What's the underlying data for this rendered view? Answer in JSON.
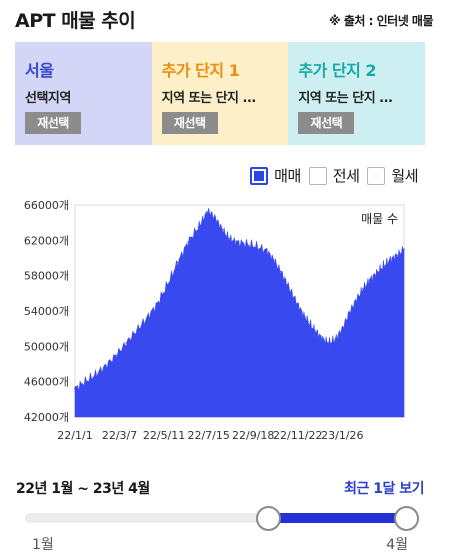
{
  "header": {
    "title": "APT 매물 추이",
    "source": "※ 출처 : 인터넷 매물"
  },
  "cards": [
    {
      "title": "서울",
      "subtitle": "선택지역",
      "button": "재선택",
      "color": "#3948d0"
    },
    {
      "title": "추가 단지 1",
      "subtitle": "지역 또는 단지 ...",
      "button": "재선택",
      "color": "#eb8d11"
    },
    {
      "title": "추가 단지 2",
      "subtitle": "지역 또는 단지 ...",
      "button": "재선택",
      "color": "#16a9a6"
    }
  ],
  "legend": [
    {
      "label": "매매",
      "checked": true
    },
    {
      "label": "전세",
      "checked": false
    },
    {
      "label": "월세",
      "checked": false
    }
  ],
  "chart_data": {
    "type": "area",
    "series_label": "매물 수",
    "color": "#3949f0",
    "ylim": [
      42000,
      66000
    ],
    "y_ticks": [
      "66000개",
      "62000개",
      "58000개",
      "54000개",
      "50000개",
      "46000개",
      "42000개"
    ],
    "y_tick_values": [
      66000,
      62000,
      58000,
      54000,
      50000,
      46000,
      42000
    ],
    "x_ticks": [
      "22/1/1",
      "22/3/7",
      "22/5/11",
      "22/7/15",
      "22/9/18",
      "22/11/22",
      "23/1/26"
    ],
    "x_tick_days": [
      0,
      65,
      130,
      195,
      260,
      325,
      390
    ],
    "x": [
      0,
      15,
      30,
      45,
      60,
      75,
      90,
      105,
      120,
      135,
      150,
      165,
      180,
      190,
      195,
      205,
      215,
      225,
      235,
      250,
      265,
      280,
      290,
      300,
      310,
      320,
      330,
      340,
      350,
      360,
      370,
      380,
      390,
      400,
      410,
      420,
      430,
      440,
      450,
      460,
      470,
      480
    ],
    "values": [
      45200,
      46000,
      46800,
      47800,
      49000,
      50400,
      51800,
      53200,
      54800,
      57000,
      59500,
      61800,
      63500,
      64800,
      65300,
      64500,
      63200,
      62200,
      61800,
      61600,
      61300,
      60800,
      59800,
      58500,
      57000,
      55500,
      54000,
      52800,
      51800,
      50900,
      50400,
      50800,
      52000,
      53800,
      55200,
      56500,
      57500,
      58300,
      59100,
      59800,
      60300,
      61000
    ]
  },
  "range": {
    "label": "22년 1월 ~ 23년 4월",
    "recent_link": "최근 1달 보기"
  },
  "slider": {
    "min_label": "1월",
    "max_label": "4월",
    "start_fraction": 0.625,
    "end_fraction": 1.0
  }
}
